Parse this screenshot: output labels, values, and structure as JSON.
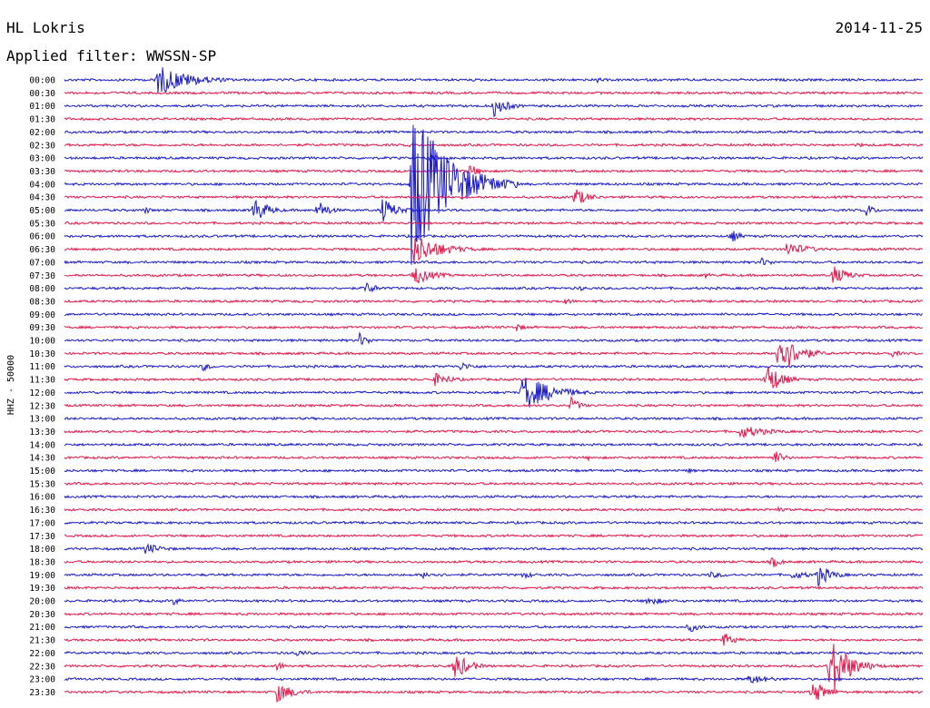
{
  "header": {
    "station": "HL Lokris",
    "date": "2014-11-25",
    "filter": "Applied filter: WWSSN-SP"
  },
  "chart_data": {
    "type": "line",
    "title": "HL Lokris",
    "subtitle": "Applied filter: WWSSN-SP",
    "ylabel": "HHZ - 50000",
    "row_labels": [
      "00:00",
      "00:30",
      "01:00",
      "01:30",
      "02:00",
      "02:30",
      "03:00",
      "03:30",
      "04:00",
      "04:30",
      "05:00",
      "05:30",
      "06:00",
      "06:30",
      "07:00",
      "07:30",
      "08:00",
      "08:30",
      "09:00",
      "09:30",
      "10:00",
      "10:30",
      "11:00",
      "11:30",
      "12:00",
      "12:30",
      "13:00",
      "13:30",
      "14:00",
      "14:30",
      "15:00",
      "15:30",
      "16:00",
      "16:30",
      "17:00",
      "17:30",
      "18:00",
      "18:30",
      "19:00",
      "19:30",
      "20:00",
      "20:30",
      "21:00",
      "21:30",
      "22:00",
      "22:30",
      "23:00",
      "23:30"
    ],
    "x_range_minutes": [
      0,
      30
    ],
    "series_colors": [
      "#1a1acc",
      "#e8174a"
    ],
    "baseline_noise": [
      {
        "row": "00:00",
        "level": 0.6
      },
      {
        "row": "00:30",
        "level": 0.8
      }
    ],
    "events": [
      {
        "row": "00:00",
        "minute": 3.2,
        "amp": 18,
        "dur": 1.4
      },
      {
        "row": "00:00",
        "minute": 18.6,
        "amp": 4,
        "dur": 0.3
      },
      {
        "row": "01:00",
        "minute": 15.0,
        "amp": 12,
        "dur": 0.6
      },
      {
        "row": "01:30",
        "minute": 17.2,
        "amp": 2,
        "dur": 0.3
      },
      {
        "row": "02:30",
        "minute": 12.0,
        "amp": 3,
        "dur": 0.3
      },
      {
        "row": "02:30",
        "minute": 27.7,
        "amp": 3,
        "dur": 0.5
      },
      {
        "row": "03:00",
        "minute": 12.7,
        "amp": 6,
        "dur": 0.4
      },
      {
        "row": "03:30",
        "minute": 14.1,
        "amp": 9,
        "dur": 0.5
      },
      {
        "row": "04:00",
        "minute": 12.1,
        "amp": 95,
        "dur": 1.5
      },
      {
        "row": "04:30",
        "minute": 17.8,
        "amp": 12,
        "dur": 0.6
      },
      {
        "row": "05:00",
        "minute": 2.8,
        "amp": 5,
        "dur": 0.3
      },
      {
        "row": "05:00",
        "minute": 6.6,
        "amp": 16,
        "dur": 0.6
      },
      {
        "row": "05:00",
        "minute": 8.8,
        "amp": 13,
        "dur": 0.5
      },
      {
        "row": "05:00",
        "minute": 11.1,
        "amp": 15,
        "dur": 0.6
      },
      {
        "row": "05:00",
        "minute": 13.5,
        "amp": 3,
        "dur": 0.3
      },
      {
        "row": "05:00",
        "minute": 28.0,
        "amp": 8,
        "dur": 0.4
      },
      {
        "row": "06:00",
        "minute": 23.3,
        "amp": 8,
        "dur": 0.4
      },
      {
        "row": "06:30",
        "minute": 12.2,
        "amp": 18,
        "dur": 1.2
      },
      {
        "row": "06:30",
        "minute": 25.2,
        "amp": 9,
        "dur": 1.0
      },
      {
        "row": "07:00",
        "minute": 24.3,
        "amp": 6,
        "dur": 0.5
      },
      {
        "row": "07:30",
        "minute": 12.2,
        "amp": 12,
        "dur": 0.8
      },
      {
        "row": "07:30",
        "minute": 22.4,
        "amp": 4,
        "dur": 0.3
      },
      {
        "row": "07:30",
        "minute": 26.8,
        "amp": 12,
        "dur": 0.7
      },
      {
        "row": "08:00",
        "minute": 10.5,
        "amp": 8,
        "dur": 0.5
      },
      {
        "row": "08:00",
        "minute": 18.0,
        "amp": 3,
        "dur": 0.5
      },
      {
        "row": "08:30",
        "minute": 17.4,
        "amp": 4,
        "dur": 0.6
      },
      {
        "row": "09:30",
        "minute": 15.8,
        "amp": 5,
        "dur": 0.4
      },
      {
        "row": "10:00",
        "minute": 10.3,
        "amp": 9,
        "dur": 0.4
      },
      {
        "row": "10:30",
        "minute": 24.9,
        "amp": 30,
        "dur": 0.8
      },
      {
        "row": "10:30",
        "minute": 28.9,
        "amp": 5,
        "dur": 0.4
      },
      {
        "row": "11:00",
        "minute": 4.8,
        "amp": 6,
        "dur": 0.4
      },
      {
        "row": "11:00",
        "minute": 13.8,
        "amp": 5,
        "dur": 0.8
      },
      {
        "row": "11:30",
        "minute": 12.9,
        "amp": 8,
        "dur": 0.8
      },
      {
        "row": "11:30",
        "minute": 24.5,
        "amp": 22,
        "dur": 0.6
      },
      {
        "row": "12:00",
        "minute": 16.0,
        "amp": 22,
        "dur": 1.2
      },
      {
        "row": "12:30",
        "minute": 17.7,
        "amp": 10,
        "dur": 0.4
      },
      {
        "row": "13:30",
        "minute": 23.6,
        "amp": 8,
        "dur": 1.2
      },
      {
        "row": "14:30",
        "minute": 18.3,
        "amp": 3,
        "dur": 0.3
      },
      {
        "row": "14:30",
        "minute": 24.8,
        "amp": 10,
        "dur": 0.4
      },
      {
        "row": "15:00",
        "minute": 21.8,
        "amp": 3,
        "dur": 0.4
      },
      {
        "row": "16:30",
        "minute": 24.9,
        "amp": 3,
        "dur": 0.5
      },
      {
        "row": "18:00",
        "minute": 2.8,
        "amp": 7,
        "dur": 0.8
      },
      {
        "row": "18:30",
        "minute": 24.7,
        "amp": 8,
        "dur": 0.4
      },
      {
        "row": "19:00",
        "minute": 12.5,
        "amp": 4,
        "dur": 1.0
      },
      {
        "row": "19:00",
        "minute": 16.0,
        "amp": 4,
        "dur": 0.7
      },
      {
        "row": "19:00",
        "minute": 22.5,
        "amp": 4,
        "dur": 1.0
      },
      {
        "row": "19:00",
        "minute": 25.4,
        "amp": 5,
        "dur": 1.0
      },
      {
        "row": "19:00",
        "minute": 26.3,
        "amp": 14,
        "dur": 0.6
      },
      {
        "row": "20:00",
        "minute": 3.8,
        "amp": 5,
        "dur": 0.4
      },
      {
        "row": "20:00",
        "minute": 20.3,
        "amp": 5,
        "dur": 1.0
      },
      {
        "row": "21:00",
        "minute": 21.8,
        "amp": 7,
        "dur": 0.5
      },
      {
        "row": "21:30",
        "minute": 23.0,
        "amp": 10,
        "dur": 0.5
      },
      {
        "row": "22:00",
        "minute": 8.0,
        "amp": 5,
        "dur": 0.6
      },
      {
        "row": "22:30",
        "minute": 7.4,
        "amp": 6,
        "dur": 0.4
      },
      {
        "row": "22:30",
        "minute": 13.6,
        "amp": 18,
        "dur": 0.6
      },
      {
        "row": "22:30",
        "minute": 26.7,
        "amp": 40,
        "dur": 0.8
      },
      {
        "row": "23:00",
        "minute": 23.9,
        "amp": 6,
        "dur": 1.0
      },
      {
        "row": "23:30",
        "minute": 7.4,
        "amp": 12,
        "dur": 0.8
      },
      {
        "row": "23:30",
        "minute": 26.1,
        "amp": 16,
        "dur": 0.6
      }
    ]
  }
}
